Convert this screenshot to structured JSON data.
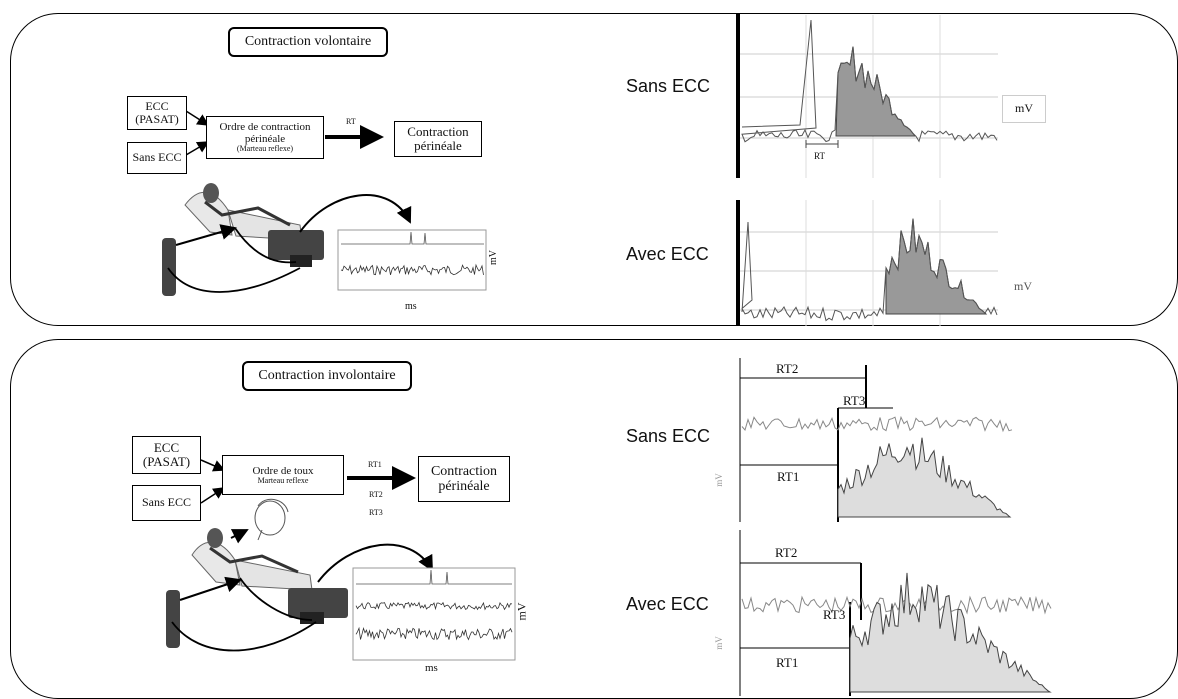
{
  "top": {
    "title": "Contraction volontaire",
    "input_ecc_line1": "ECC",
    "input_ecc_line2": "(PASAT)",
    "input_sans": "Sans ECC",
    "order_line1": "Ordre de contraction",
    "order_line2": "périnéale",
    "order_line3": "(Marteau reflexe)",
    "arrow_label": "RT",
    "output_line1": "Contraction",
    "output_line2": "périnéale",
    "scope_y_unit": "mV",
    "scope_x_unit": "ms",
    "row1_label": "Sans ECC",
    "row2_label": "Avec ECC",
    "trace1_unit": "mV",
    "trace1_marker": "RT",
    "trace2_unit": "mV"
  },
  "bottom": {
    "title": "Contraction involontaire",
    "input_ecc_line1": "ECC",
    "input_ecc_line2": "(PASAT)",
    "input_sans": "Sans ECC",
    "order_line1": "Ordre de toux",
    "order_line2": "Marteau reflexe",
    "arrow_label_1": "RT1",
    "arrow_label_2": "RT2",
    "arrow_label_3": "RT3",
    "output_line1": "Contraction",
    "output_line2": "périnéale",
    "scope_y_unit": "mV",
    "scope_x_unit": "ms",
    "row1_label": "Sans ECC",
    "row2_label": "Avec ECC",
    "row1_rt2": "RT2",
    "row1_rt3": "RT3",
    "row1_rt1": "RT1",
    "row2_rt2": "RT2",
    "row2_rt3": "RT3",
    "row2_rt1": "RT1",
    "side_unit_1": "mV",
    "side_unit_2": "mV"
  }
}
